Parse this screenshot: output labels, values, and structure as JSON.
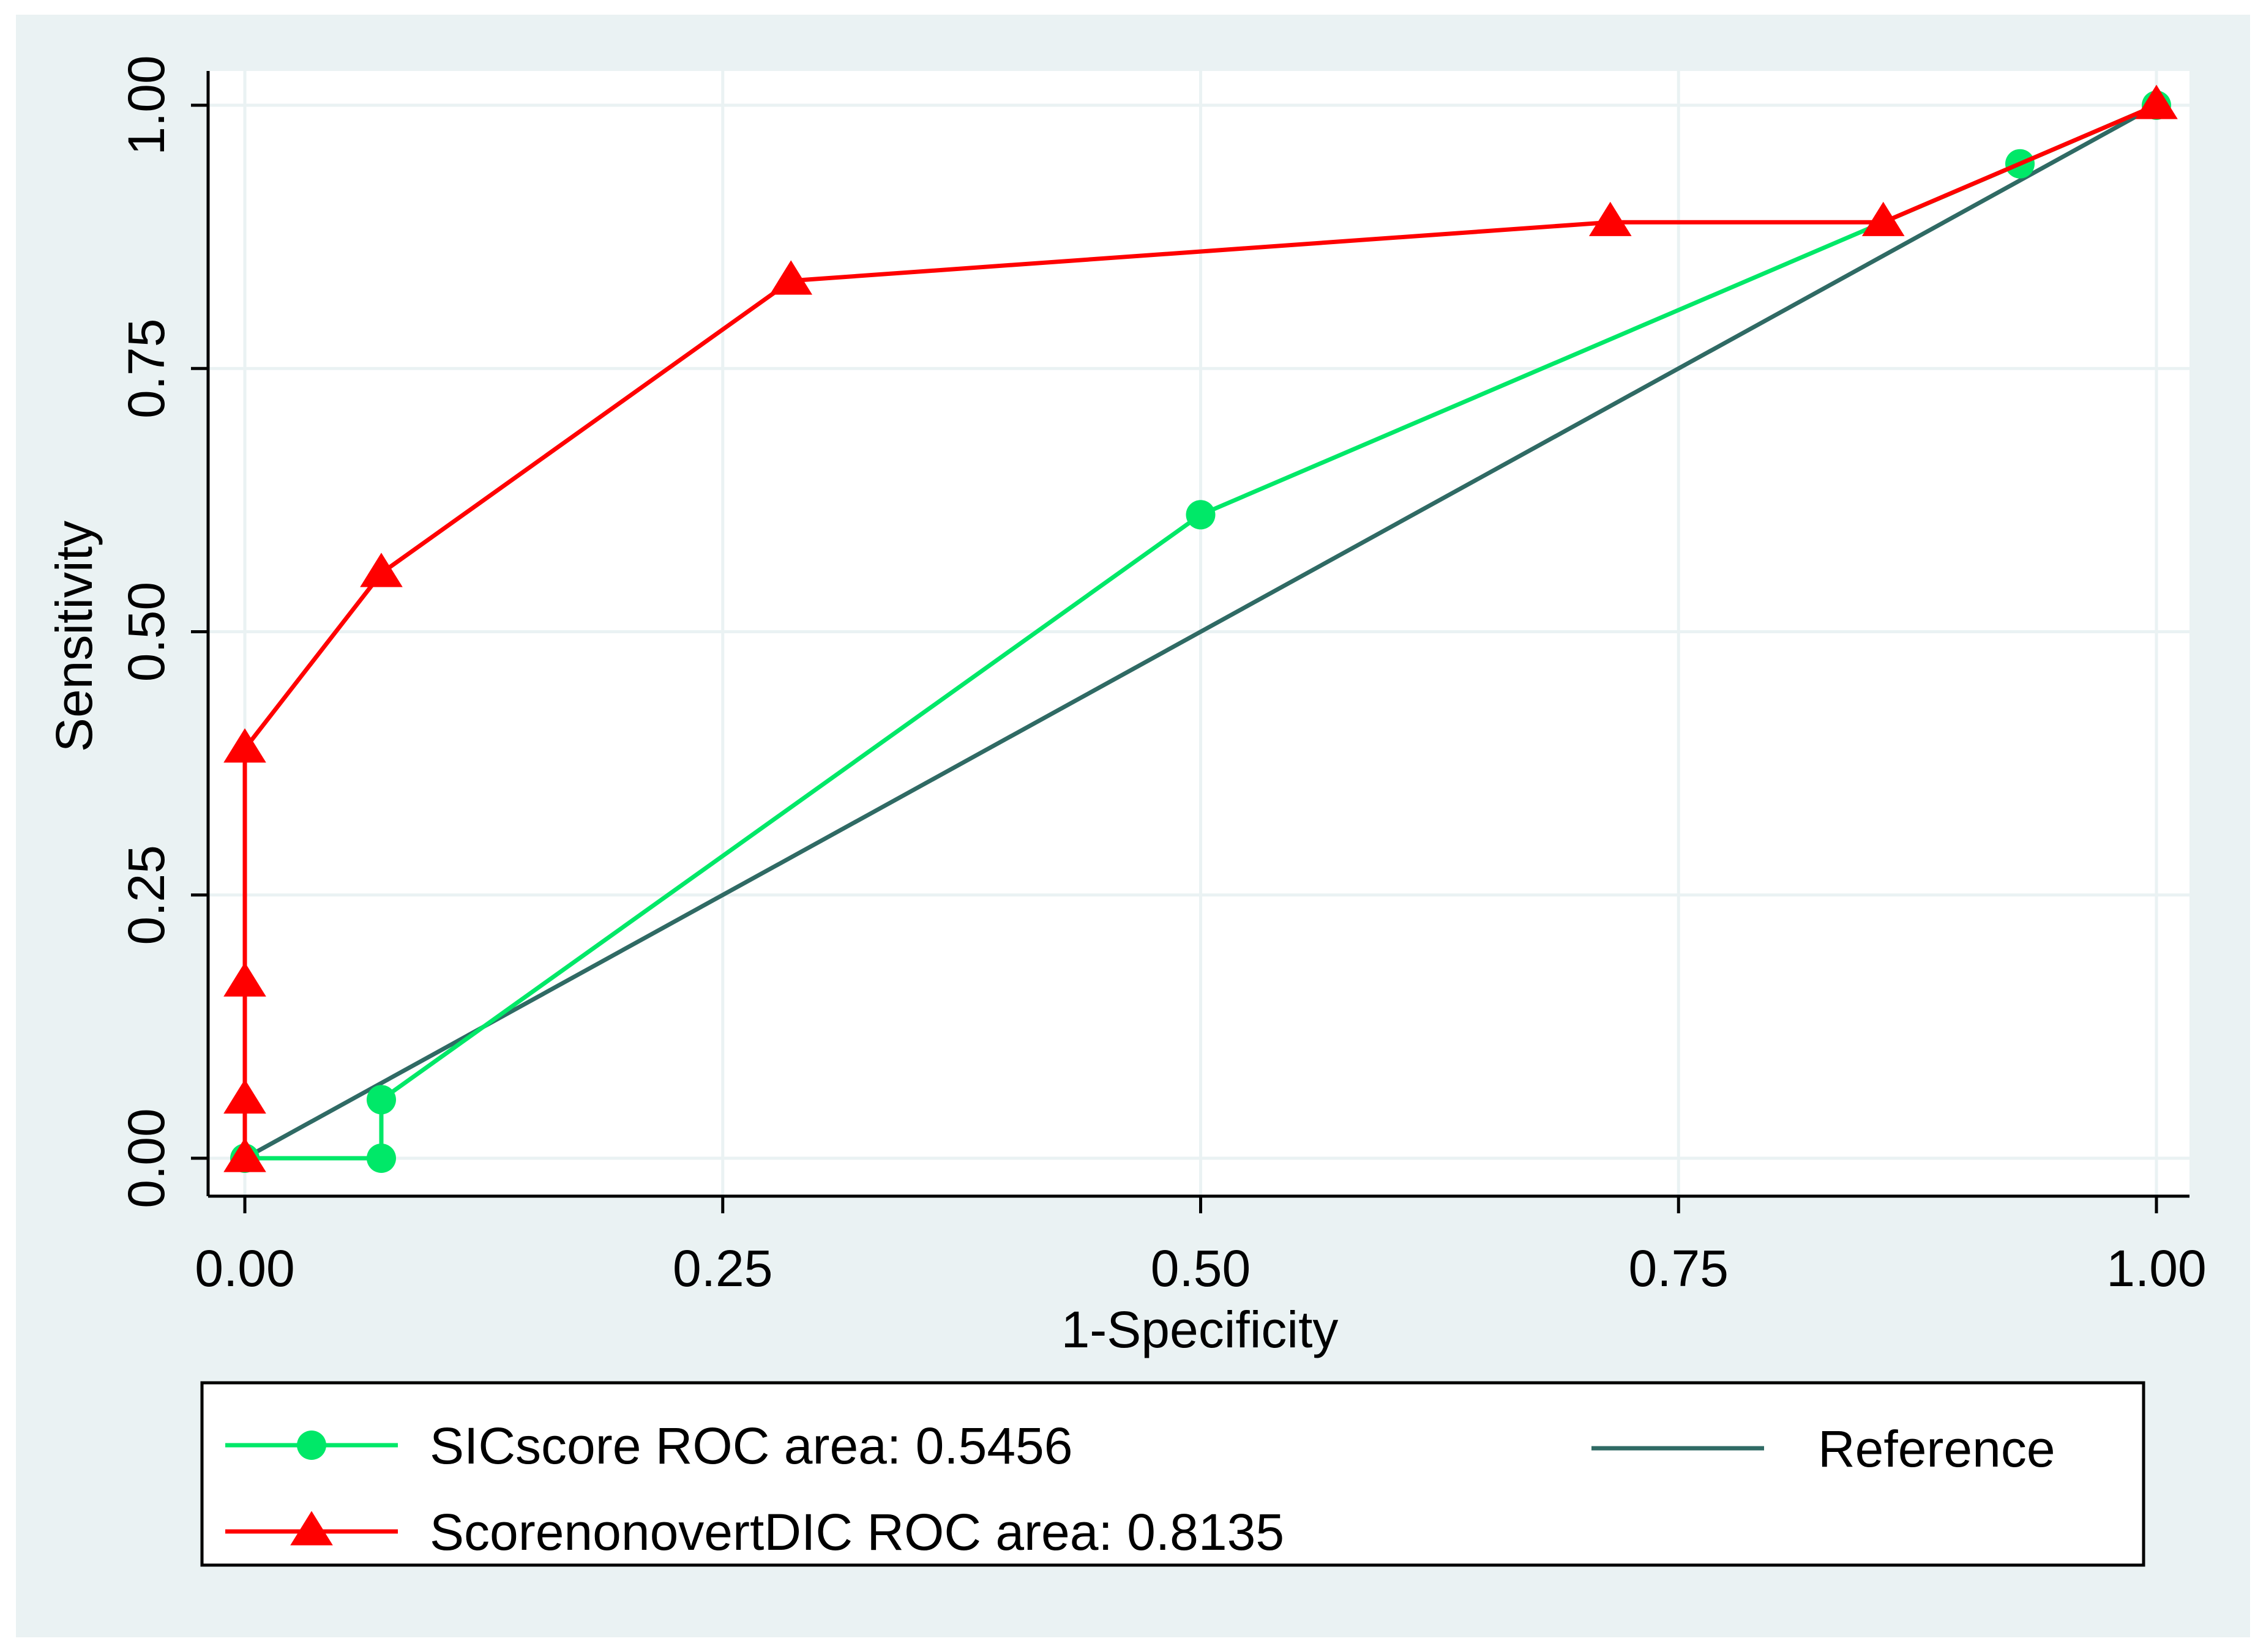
{
  "chart_data": {
    "type": "line",
    "title": "",
    "xlabel": "1-Specificity",
    "ylabel": "Sensitivity",
    "xlim": [
      0,
      1
    ],
    "ylim": [
      0,
      1
    ],
    "xticks": [
      0,
      0.25,
      0.5,
      0.75,
      1
    ],
    "yticks": [
      0,
      0.25,
      0.5,
      0.75,
      1
    ],
    "xtick_labels": [
      "0.00",
      "0.25",
      "0.50",
      "0.75",
      "1.00"
    ],
    "ytick_labels": [
      "0.00",
      "0.25",
      "0.50",
      "0.75",
      "1.00"
    ],
    "grid": true,
    "legend_position": "bottom",
    "series": [
      {
        "name": "SICscore ROC area: 0.5456",
        "color": "#00e868",
        "marker": "circle",
        "x": [
          0,
          0.0714,
          0.0714,
          0.5,
          0.9286,
          1
        ],
        "y": [
          0,
          0,
          0.0556,
          0.6111,
          0.9444,
          1
        ]
      },
      {
        "name": "ScorenonovertDIC ROC area: 0.8135",
        "color": "#ff0000",
        "marker": "triangle",
        "x": [
          0,
          0,
          0,
          0,
          0.0714,
          0.2857,
          0.7143,
          0.8571,
          1
        ],
        "y": [
          0,
          0.0556,
          0.1667,
          0.3889,
          0.5556,
          0.8333,
          0.8889,
          0.8889,
          1
        ]
      },
      {
        "name": "Reference",
        "color": "#2f6a64",
        "marker": "none",
        "x": [
          0,
          1
        ],
        "y": [
          0,
          1
        ]
      }
    ]
  },
  "colors": {
    "outer_background": "#eaf2f3",
    "plot_background": "#ffffff",
    "grid": "#eaf2f3",
    "axis": "#000000"
  }
}
